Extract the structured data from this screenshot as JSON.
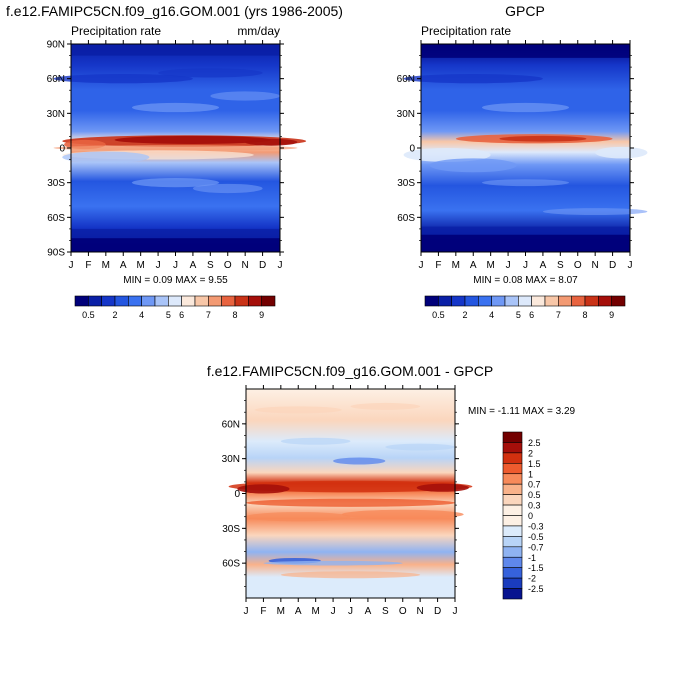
{
  "chart_data": [
    {
      "type": "heatmap",
      "title": "f.e12.FAMIPC5CN.f09_g16.GOM.001 (yrs 1986-2005)",
      "left_label": "Precipitation rate",
      "right_label": "mm/day",
      "x_ticks": [
        "J",
        "F",
        "M",
        "A",
        "M",
        "J",
        "J",
        "A",
        "S",
        "O",
        "N",
        "D",
        "J"
      ],
      "y_ticks": [
        "90N",
        "60N",
        "30N",
        "0",
        "30S",
        "60S",
        "90S"
      ],
      "y_values": [
        90,
        60,
        30,
        0,
        -30,
        -60,
        -90
      ],
      "stats": "MIN =  0.09 MAX =   9.55",
      "colorbar_labels": [
        "0.5",
        "2",
        "4",
        "5",
        "6",
        "7",
        "8",
        "9"
      ],
      "peak": 9.55
    },
    {
      "type": "heatmap",
      "title": "GPCP",
      "left_label": "Precipitation rate",
      "right_label": "",
      "x_ticks": [
        "J",
        "F",
        "M",
        "A",
        "M",
        "J",
        "J",
        "A",
        "S",
        "O",
        "N",
        "D",
        "J"
      ],
      "y_ticks": [
        "60N",
        "30N",
        "0",
        "30S",
        "60S"
      ],
      "y_values": [
        60,
        30,
        0,
        -30,
        -60
      ],
      "stats": "MIN =  0.08 MAX =   8.07",
      "colorbar_labels": [
        "0.5",
        "2",
        "4",
        "5",
        "6",
        "7",
        "8",
        "9"
      ],
      "peak": 8.07
    },
    {
      "type": "heatmap",
      "title": "f.e12.FAMIPC5CN.f09_g16.GOM.001 - GPCP",
      "x_ticks": [
        "J",
        "F",
        "M",
        "A",
        "M",
        "J",
        "J",
        "A",
        "S",
        "O",
        "N",
        "D",
        "J"
      ],
      "y_ticks": [
        "60N",
        "30N",
        "0",
        "30S",
        "60S"
      ],
      "y_values": [
        60,
        30,
        0,
        -30,
        -60
      ],
      "stats": "MIN =  -1.11 MAX =   3.29",
      "colorbar_labels": [
        "2.5",
        "2",
        "1.5",
        "1",
        "0.7",
        "0.5",
        "0.3",
        "0",
        "-0.3",
        "-0.5",
        "-0.7",
        "-1",
        "-1.5",
        "-2",
        "-2.5"
      ]
    }
  ],
  "colors": {
    "precip_scale": [
      "#00007a",
      "#0a1fa6",
      "#1536c8",
      "#2456e0",
      "#3a72f0",
      "#6f98f5",
      "#a9c4f8",
      "#dde9fb",
      "#fbe9dc",
      "#f8c7a8",
      "#f39a73",
      "#e8633f",
      "#c93217",
      "#a50f0a",
      "#730000"
    ],
    "diff_scale": [
      "#730000",
      "#a50f0a",
      "#d2300f",
      "#ee5b2e",
      "#f78a5a",
      "#f9b28a",
      "#fbd6bd",
      "#fdf0e4",
      "#dcebfb",
      "#b8d4f7",
      "#8fb3f2",
      "#5f88ec",
      "#3662dc",
      "#1a3cbe",
      "#07138f"
    ]
  }
}
